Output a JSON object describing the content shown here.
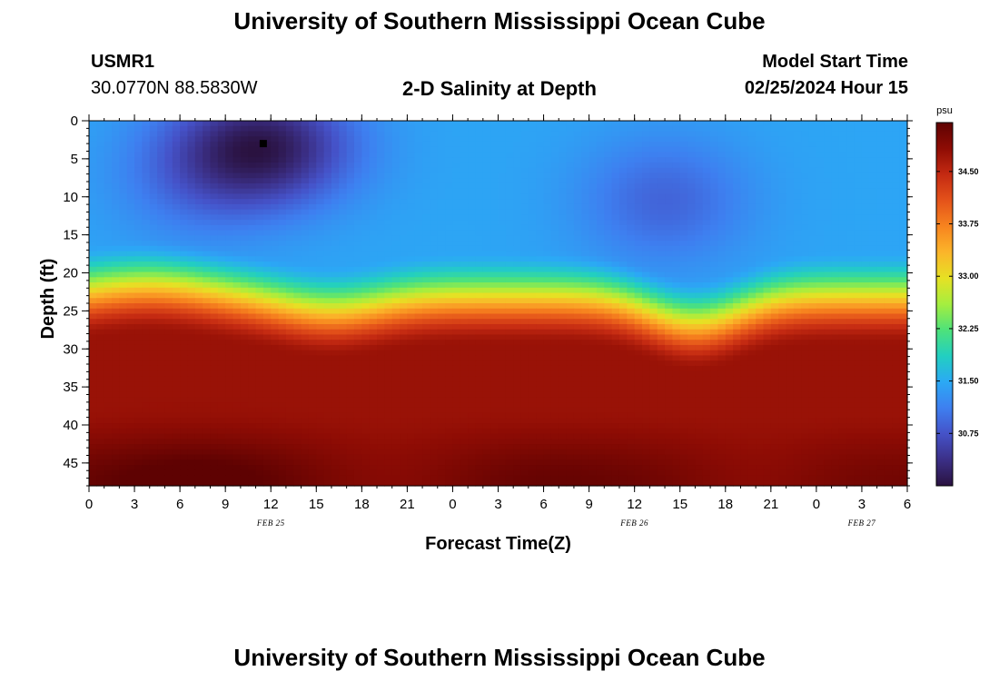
{
  "header": {
    "title": "University of Southern Mississippi Ocean Cube",
    "station_id": "USMR1",
    "coordinates": "30.0770N  88.5830W",
    "subtitle": "2-D Salinity at Depth",
    "model_start_label": "Model Start Time",
    "model_start_value": "02/25/2024 Hour 15"
  },
  "footer": {
    "title": "University of Southern Mississippi Ocean Cube"
  },
  "chart_data": {
    "type": "heatmap",
    "title": "2-D Salinity at Depth",
    "xlabel": "Forecast Time(Z)",
    "ylabel": "Depth (ft)",
    "x_unit": "hours since 02/25/2024 00Z",
    "xlim": [
      0,
      54
    ],
    "ylim": [
      48,
      0
    ],
    "x_tick_values": [
      0,
      3,
      6,
      9,
      12,
      15,
      18,
      21,
      24,
      27,
      30,
      33,
      36,
      39,
      42,
      45,
      48,
      51,
      54
    ],
    "x_tick_labels": [
      "0",
      "3",
      "6",
      "9",
      "12",
      "15",
      "18",
      "21",
      "0",
      "3",
      "6",
      "9",
      "12",
      "15",
      "18",
      "21",
      "0",
      "3",
      "6"
    ],
    "y_ticks": [
      0,
      5,
      10,
      15,
      20,
      25,
      30,
      35,
      40,
      45
    ],
    "date_labels": [
      {
        "x": 12,
        "text": "FEB 25"
      },
      {
        "x": 36,
        "text": "FEB 26"
      },
      {
        "x": 51,
        "text": "FEB 27"
      }
    ],
    "colorbar": {
      "unit": "psu",
      "min": 30.0,
      "max": 35.2,
      "tick_values": [
        34.5,
        33.75,
        33.0,
        32.25,
        31.5,
        30.75
      ],
      "tick_labels": [
        "34.50",
        "33.75",
        "33.00",
        "32.25",
        "31.50",
        "30.75"
      ],
      "colors": [
        "#2a1240",
        "#3b2f86",
        "#4552c8",
        "#3e7ff0",
        "#2ba9f5",
        "#22cfc1",
        "#4ee27a",
        "#a5ee3f",
        "#e6e124",
        "#fbb52a",
        "#f7841f",
        "#e4521a",
        "#c42a12",
        "#8e0c04",
        "#5e0202"
      ]
    },
    "marker": {
      "x": 11.5,
      "depth": 3
    },
    "grid": false,
    "field_description": {
      "surface_salinity": 31.4,
      "halocline_depth_range_ft": [
        15,
        35
      ],
      "low_salinity_cores": [
        {
          "x": 11.5,
          "depth": 3,
          "value": 30.0
        },
        {
          "x": 38,
          "depth": 11,
          "value": 30.9
        }
      ],
      "deep_salinity": 34.9
    }
  }
}
